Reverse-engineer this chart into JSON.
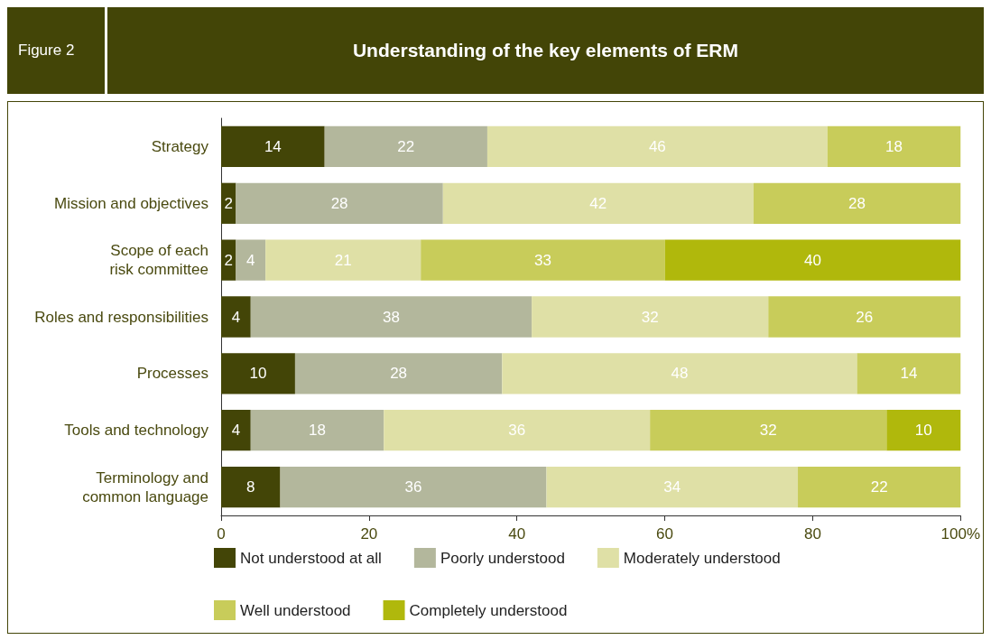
{
  "chart_data": {
    "type": "bar",
    "orientation": "horizontal",
    "stacked": true,
    "title": "Understanding of the key elements of ERM",
    "subtitle": "Figure 2",
    "categories": [
      "Strategy",
      "Mission and objectives",
      "Scope of each\nrisk committee",
      "Roles and responsibilities",
      "Processes",
      "Tools and technology",
      "Terminology and\ncommon language"
    ],
    "series": [
      {
        "name": "Not understood at all",
        "color": "#434507",
        "values": [
          14,
          2,
          2,
          4,
          10,
          4,
          8
        ]
      },
      {
        "name": "Poorly understood",
        "color": "#b3b79c",
        "values": [
          22,
          28,
          4,
          38,
          28,
          18,
          36
        ]
      },
      {
        "name": "Moderately understood",
        "color": "#dfe0a6",
        "values": [
          46,
          42,
          21,
          32,
          48,
          36,
          34
        ]
      },
      {
        "name": "Well understood",
        "color": "#c8cc5a",
        "values": [
          18,
          28,
          33,
          26,
          14,
          32,
          22
        ]
      },
      {
        "name": "Completely understood",
        "color": "#b0b80c",
        "values": [
          null,
          null,
          40,
          null,
          null,
          10,
          null
        ]
      }
    ],
    "xlim": [
      0,
      100
    ],
    "xticks": [
      0,
      20,
      40,
      60,
      80,
      {
        "value": 100,
        "label": "100%"
      }
    ],
    "data_labels": true,
    "grid": false,
    "legend": "bottom"
  }
}
